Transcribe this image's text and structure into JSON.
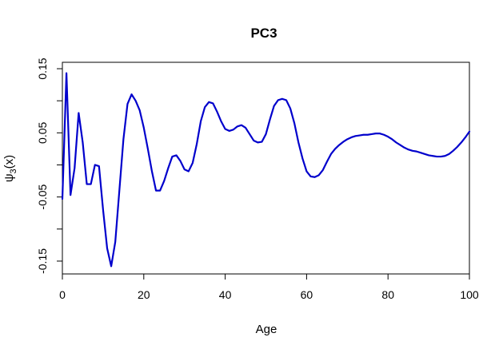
{
  "chart_data": {
    "type": "line",
    "title": "PC3",
    "xlabel": "Age",
    "ylabel": "ψ3(x)",
    "ylabel_main": "ψ",
    "ylabel_sub": "3",
    "ylabel_tail": "(x)",
    "xlim": [
      0,
      100
    ],
    "ylim": [
      -0.17,
      0.16
    ],
    "x_ticks": [
      0,
      20,
      40,
      60,
      80,
      100
    ],
    "x_tick_labels": [
      "0",
      "20",
      "40",
      "60",
      "80",
      "100"
    ],
    "y_ticks": [
      -0.15,
      -0.1,
      -0.05,
      0,
      0.05,
      0.1,
      0.15
    ],
    "y_tick_labels": [
      "-0.15",
      "",
      "-0.05",
      "",
      "0.05",
      "",
      "0.15"
    ],
    "grid": false,
    "line_color": "#0000CC",
    "series": [
      {
        "x": [
          0,
          1,
          2,
          3,
          4,
          5,
          6,
          7,
          8,
          9,
          10,
          11,
          12,
          13,
          14,
          15,
          16,
          17,
          18,
          19,
          20,
          21,
          22,
          23,
          24,
          25,
          26,
          27,
          28,
          29,
          30,
          31,
          32,
          33,
          34,
          35,
          36,
          37,
          38,
          39,
          40,
          41,
          42,
          43,
          44,
          45,
          46,
          47,
          48,
          49,
          50,
          51,
          52,
          53,
          54,
          55,
          56,
          57,
          58,
          59,
          60,
          61,
          62,
          63,
          64,
          65,
          66,
          67,
          68,
          69,
          70,
          71,
          72,
          73,
          74,
          75,
          76,
          77,
          78,
          79,
          80,
          81,
          82,
          83,
          84,
          85,
          86,
          87,
          88,
          89,
          90,
          91,
          92,
          93,
          94,
          95,
          96,
          97,
          98,
          99,
          100
        ],
        "y": [
          -0.053,
          0.143,
          -0.047,
          -0.005,
          0.081,
          0.035,
          -0.03,
          -0.03,
          0.0,
          -0.002,
          -0.07,
          -0.13,
          -0.158,
          -0.12,
          -0.04,
          0.04,
          0.095,
          0.11,
          0.1,
          0.085,
          0.058,
          0.025,
          -0.01,
          -0.04,
          -0.04,
          -0.025,
          -0.005,
          0.013,
          0.015,
          0.006,
          -0.007,
          -0.01,
          0.003,
          0.032,
          0.068,
          0.09,
          0.098,
          0.096,
          0.083,
          0.068,
          0.056,
          0.053,
          0.055,
          0.06,
          0.062,
          0.058,
          0.048,
          0.038,
          0.035,
          0.036,
          0.048,
          0.071,
          0.092,
          0.101,
          0.103,
          0.101,
          0.088,
          0.065,
          0.035,
          0.01,
          -0.01,
          -0.018,
          -0.019,
          -0.016,
          -0.008,
          0.005,
          0.017,
          0.025,
          0.031,
          0.036,
          0.04,
          0.043,
          0.045,
          0.046,
          0.047,
          0.047,
          0.048,
          0.049,
          0.049,
          0.047,
          0.044,
          0.04,
          0.035,
          0.031,
          0.027,
          0.024,
          0.022,
          0.021,
          0.019,
          0.017,
          0.015,
          0.014,
          0.013,
          0.013,
          0.014,
          0.017,
          0.022,
          0.028,
          0.035,
          0.043,
          0.052
        ]
      }
    ]
  }
}
